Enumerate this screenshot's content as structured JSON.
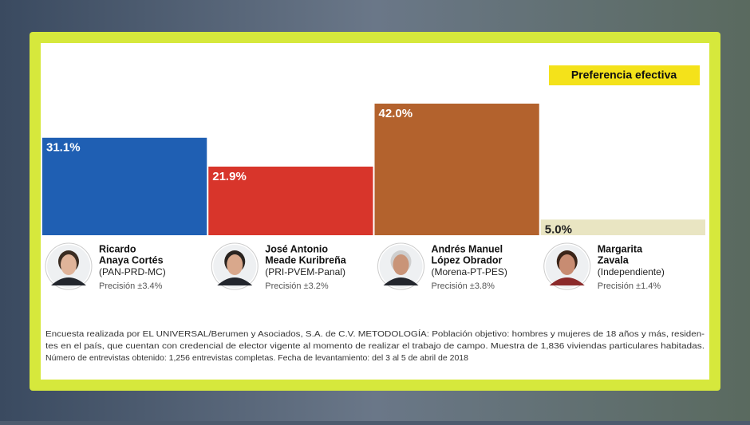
{
  "chart_data": {
    "type": "bar",
    "legend_label": "Preferencia efectiva",
    "categories": [
      [
        "Ricardo",
        "Anaya Cortés"
      ],
      [
        "José Antonio",
        "Meade Kuribreña"
      ],
      [
        "Andrés Manuel",
        "López Obrador"
      ],
      [
        "Margarita",
        "Zavala"
      ]
    ],
    "parties": [
      "(PAN-PRD-MC)",
      "(PRI-PVEM-Panal)",
      "(Morena-PT-PES)",
      "(Independiente)"
    ],
    "precision": [
      "Precisión ±3.4%",
      "Precisión ±3.2%",
      "Precisión ±3.8%",
      "Precisión ±1.4%"
    ],
    "values": [
      31.1,
      21.9,
      42.0,
      5.0
    ],
    "value_labels": [
      "31.1%",
      "21.9%",
      "42.0%",
      "5.0%"
    ],
    "colors": [
      "#1f5fb3",
      "#d8352b",
      "#b3622d",
      "#e9e5c2"
    ],
    "ylim": [
      0,
      50
    ],
    "footnote": [
      "Encuesta realizada por EL UNIVERSAL/Berumen y Asociados, S.A. de C.V. METODOLOGÍA: Población objetivo: hombres y mujeres de 18 años y más, residen-",
      "tes en el país, que cuentan con credencial de elector vigente al momento de realizar el trabajo de campo. Muestra de 1,836 viviendas particulares habitadas.",
      "Número de entrevistas obtenido: 1,256  entrevistas completas. Fecha de levantamiento: del 3 al 5 de abril de 2018"
    ]
  }
}
